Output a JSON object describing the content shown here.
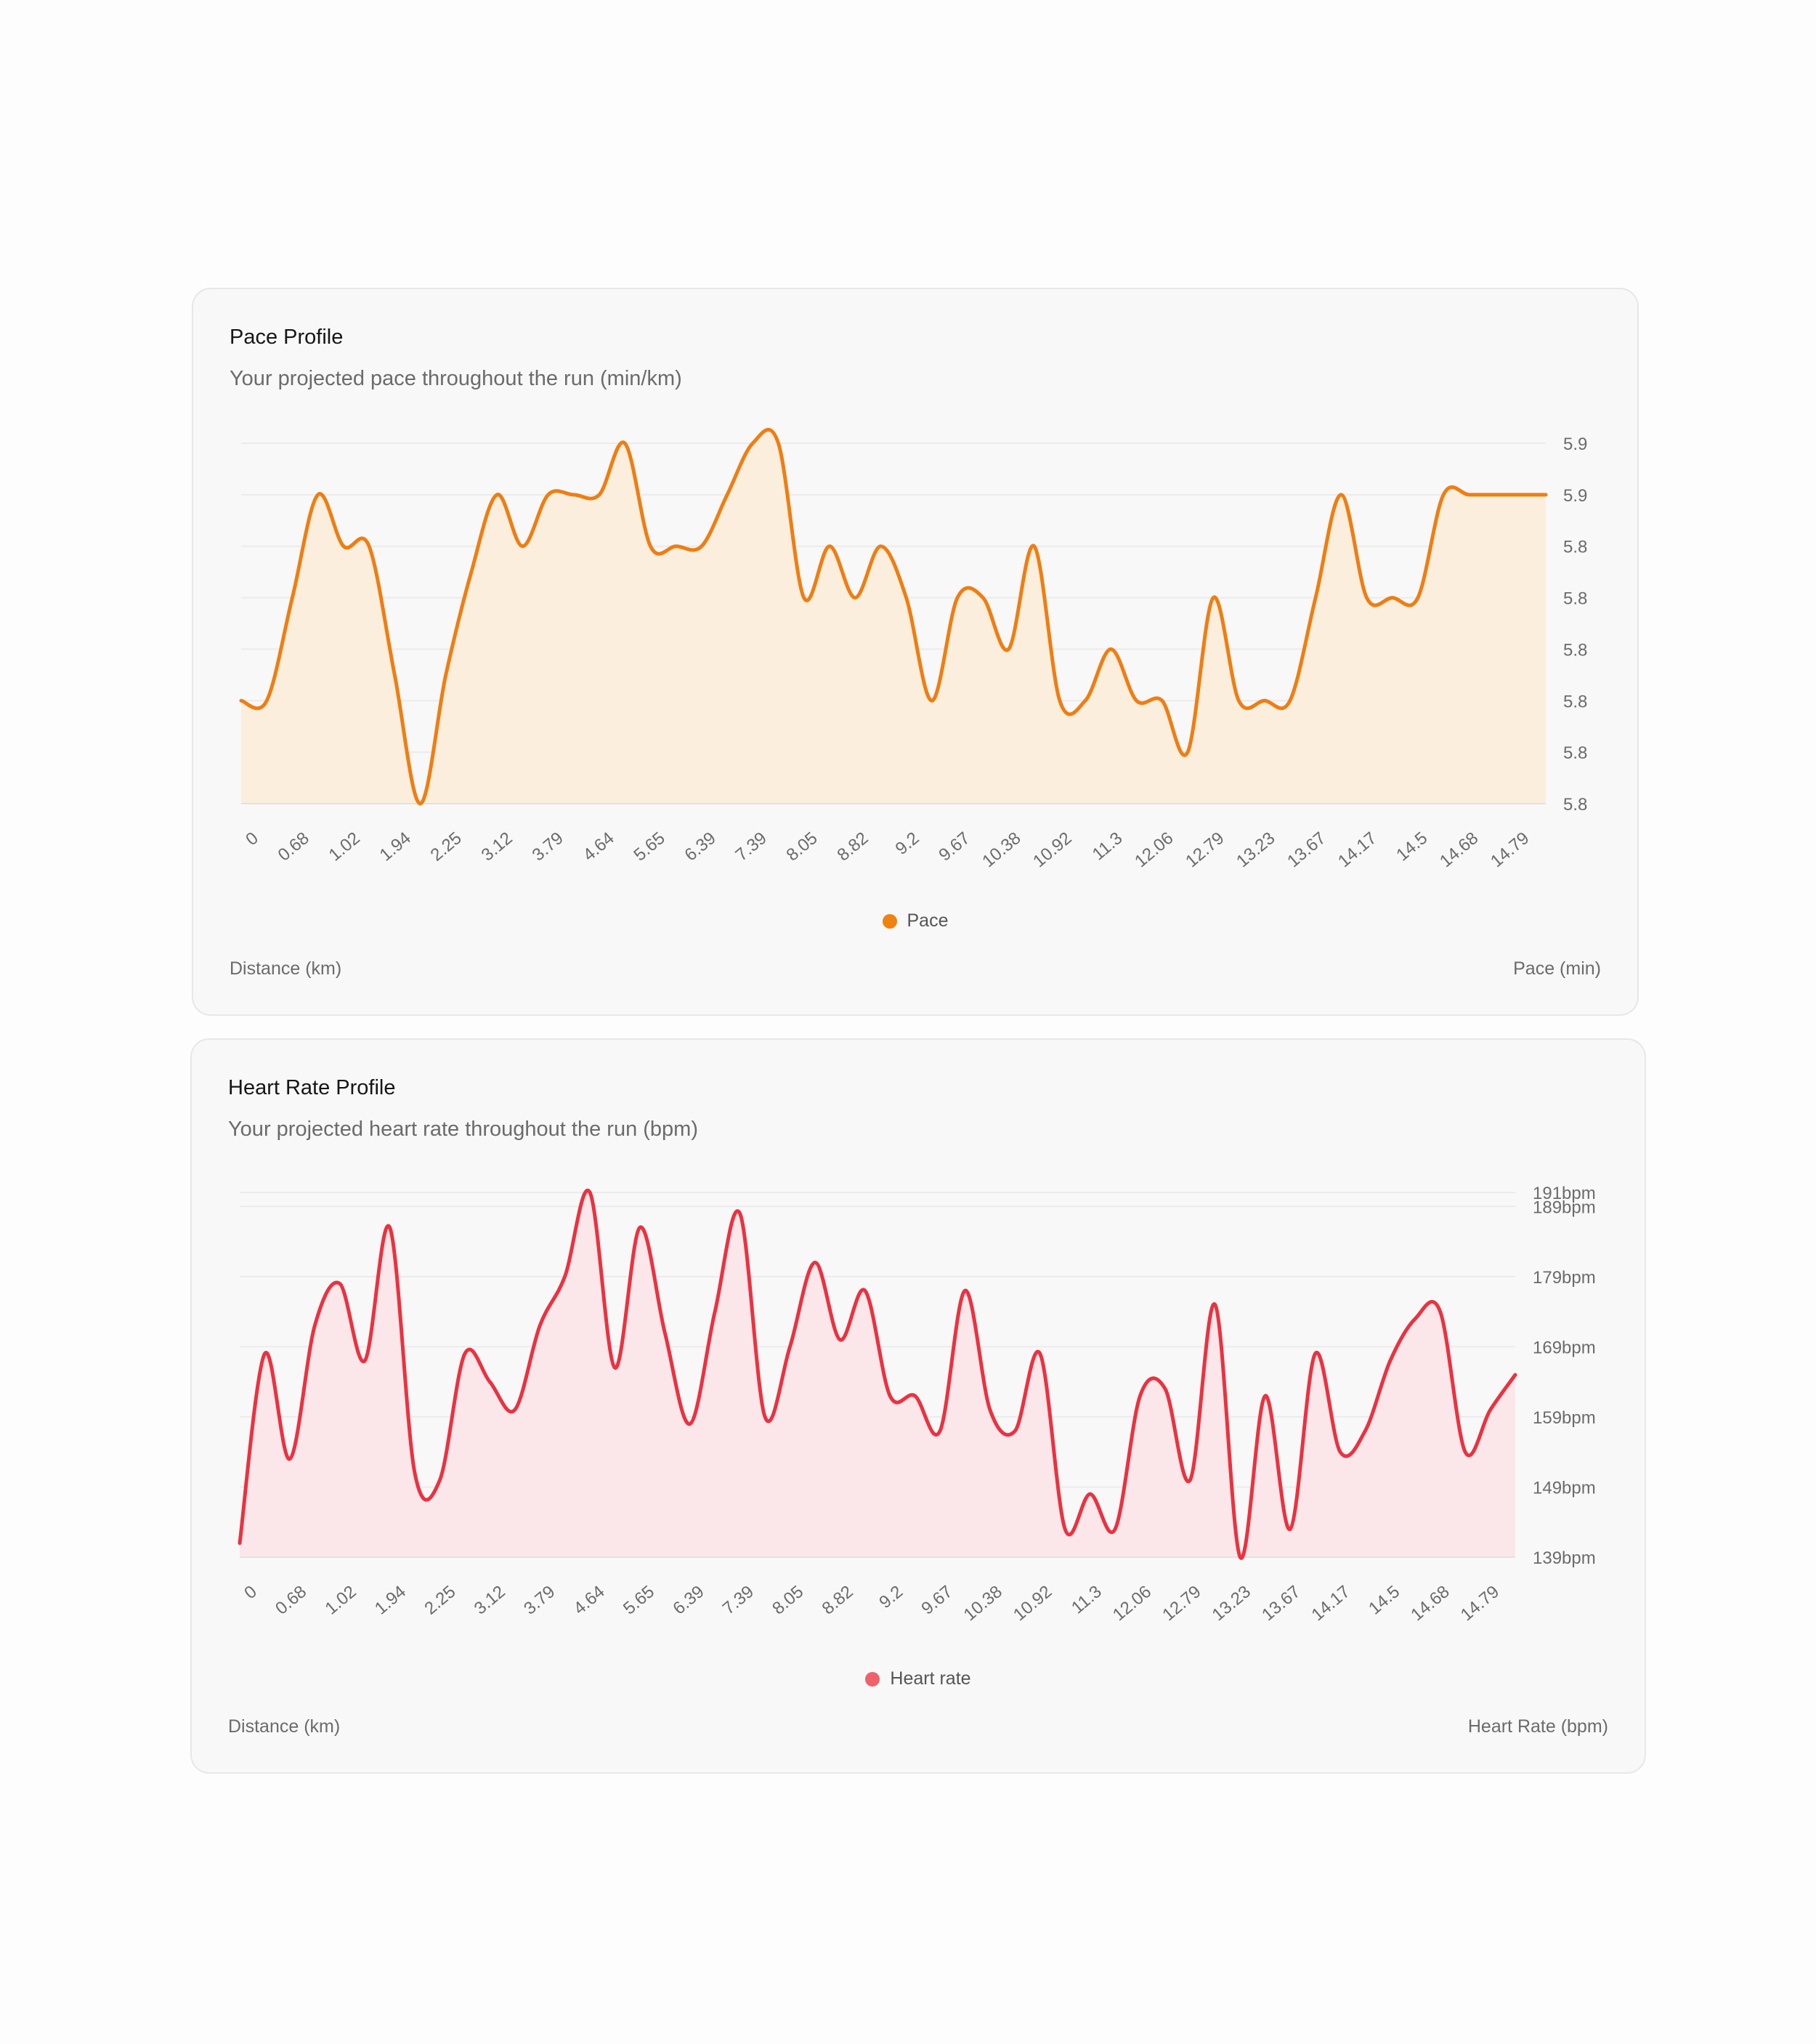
{
  "charts": {
    "pace": {
      "title": "Pace Profile",
      "subtitle": "Your projected pace throughout the run (min/km)",
      "legend_label": "Pace",
      "x_axis_name": "Distance (km)",
      "y_axis_name": "Pace (min)",
      "colors": {
        "line": "#f07d12",
        "fill": "#fbeedd",
        "legend": "#f0820f"
      }
    },
    "heart": {
      "title": "Heart Rate Profile",
      "subtitle": "Your projected heart rate throughout the run (bpm)",
      "legend_label": "Heart rate",
      "x_axis_name": "Distance (km)",
      "y_axis_name": "Heart Rate (bpm)",
      "colors": {
        "line": "#ec3140",
        "fill": "#fbe7e9",
        "legend": "#f0616c"
      }
    }
  },
  "chart_data": [
    {
      "type": "area",
      "title": "Pace Profile",
      "subtitle": "Your projected pace throughout the run (min/km)",
      "xlabel": "Distance (km)",
      "ylabel": "Pace (min)",
      "legend": "bottom-center",
      "grid": true,
      "categories": [
        "0",
        "0.68",
        "1.02",
        "1.94",
        "2.25",
        "3.12",
        "3.79",
        "4.64",
        "5.65",
        "6.39",
        "7.39",
        "8.05",
        "8.82",
        "9.2",
        "9.67",
        "10.38",
        "10.92",
        "11.3",
        "12.06",
        "12.79",
        "13.23",
        "13.67",
        "14.17",
        "14.5",
        "14.68",
        "14.79"
      ],
      "y_tick_labels": [
        "5.9",
        "5.9",
        "5.8",
        "5.8",
        "5.8",
        "5.8",
        "5.8",
        "5.8"
      ],
      "ylim": [
        5.76,
        5.9
      ],
      "series": [
        {
          "name": "Pace",
          "x": [
            0,
            0.5,
            1,
            1.5,
            2,
            2.5,
            3,
            3.5,
            4,
            4.5,
            5,
            5.5,
            6,
            6.5,
            7,
            7.5,
            8,
            8.5,
            9,
            9.5,
            10,
            10.5,
            11,
            11.5,
            12,
            12.5,
            13,
            13.5,
            14,
            14.5,
            15,
            15.5,
            16,
            16.5,
            17,
            17.5,
            18,
            18.5,
            19,
            19.5,
            20,
            20.5,
            21,
            21.5,
            22,
            22.5,
            23,
            23.5,
            24,
            24.5,
            25,
            25.5
          ],
          "values": [
            5.8,
            5.8,
            5.84,
            5.88,
            5.86,
            5.86,
            5.81,
            5.76,
            5.81,
            5.85,
            5.88,
            5.86,
            5.88,
            5.88,
            5.88,
            5.9,
            5.86,
            5.86,
            5.86,
            5.88,
            5.9,
            5.9,
            5.84,
            5.86,
            5.84,
            5.86,
            5.84,
            5.8,
            5.84,
            5.84,
            5.82,
            5.86,
            5.8,
            5.8,
            5.82,
            5.8,
            5.8,
            5.78,
            5.84,
            5.8,
            5.8,
            5.8,
            5.84,
            5.88,
            5.84,
            5.84,
            5.84,
            5.88,
            5.88,
            5.88,
            5.88,
            5.88
          ]
        }
      ]
    },
    {
      "type": "area",
      "title": "Heart Rate Profile",
      "subtitle": "Your projected heart rate throughout the run (bpm)",
      "xlabel": "Distance (km)",
      "ylabel": "Heart Rate (bpm)",
      "legend": "bottom-center",
      "grid": true,
      "categories": [
        "0",
        "0.68",
        "1.02",
        "1.94",
        "2.25",
        "3.12",
        "3.79",
        "4.64",
        "5.65",
        "6.39",
        "7.39",
        "8.05",
        "8.82",
        "9.2",
        "9.67",
        "10.38",
        "10.92",
        "11.3",
        "12.06",
        "12.79",
        "13.23",
        "13.67",
        "14.17",
        "14.5",
        "14.68",
        "14.79"
      ],
      "y_ticks": [
        139,
        149,
        159,
        169,
        179,
        189,
        191
      ],
      "y_tick_labels": [
        "139bpm",
        "149bpm",
        "159bpm",
        "169bpm",
        "179bpm",
        "189bpm",
        "191bpm"
      ],
      "ylim": [
        139,
        191
      ],
      "series": [
        {
          "name": "Heart rate",
          "x": [
            0,
            0.5,
            1,
            1.5,
            2,
            2.5,
            3,
            3.5,
            4,
            4.5,
            5,
            5.5,
            6,
            6.5,
            7,
            7.5,
            8,
            8.5,
            9,
            9.5,
            10,
            10.5,
            11,
            11.5,
            12,
            12.5,
            13,
            13.5,
            14,
            14.5,
            15,
            15.5,
            16,
            16.5,
            17,
            17.5,
            18,
            18.5,
            19,
            19.5,
            20,
            20.5,
            21,
            21.5,
            22,
            22.5,
            23,
            23.5,
            24,
            24.5,
            25,
            25.5
          ],
          "values": [
            141,
            168,
            153,
            172,
            178,
            167,
            186,
            151,
            150,
            168,
            164,
            160,
            172,
            179,
            191,
            166,
            186,
            171,
            158,
            174,
            188,
            159,
            169,
            181,
            170,
            177,
            162,
            162,
            157,
            177,
            160,
            157,
            168,
            143,
            148,
            143,
            162,
            163,
            150,
            175,
            139,
            162,
            143,
            168,
            154,
            157,
            167,
            173,
            174,
            154,
            160,
            165
          ]
        }
      ]
    }
  ]
}
